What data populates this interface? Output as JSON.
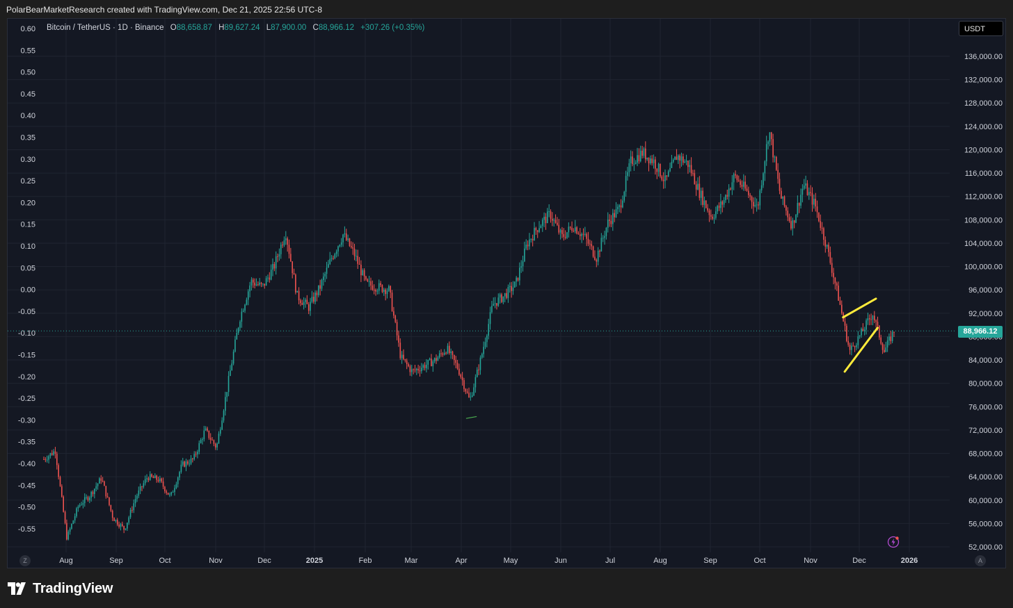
{
  "header": {
    "attribution": "PolarBearMarketResearch created with TradingView.com, Dec 21, 2025 22:56 UTC-8"
  },
  "legend": {
    "symbol": "Bitcoin / TetherUS · 1D · Binance",
    "open_label": "O",
    "open": "88,658.87",
    "high_label": "H",
    "high": "89,627.24",
    "low_label": "L",
    "low": "87,900.00",
    "close_label": "C",
    "close": "88,966.12",
    "change": "+307.26 (+0.35%)"
  },
  "currency_button": "USDT",
  "last_price_tag": "88,966.12",
  "zoom_label": "Z",
  "auto_label": "A",
  "brand": {
    "name": "TradingView",
    "logo_icon": "tradingview-logo-icon"
  },
  "colors": {
    "background": "#141823",
    "up": "#26a69a",
    "down": "#ef5350",
    "trendline": "#ffeb3b",
    "text": "#d1d4dc",
    "grid": "#1f2430"
  },
  "chart_data": {
    "type": "candlestick",
    "right_axis": {
      "ticks": [
        "136,000.00",
        "132,000.00",
        "128,000.00",
        "124,000.00",
        "120,000.00",
        "116,000.00",
        "112,000.00",
        "108,000.00",
        "104,000.00",
        "100,000.00",
        "96,000.00",
        "92,000.00",
        "88,000.00",
        "84,000.00",
        "80,000.00",
        "76,000.00",
        "72,000.00",
        "68,000.00",
        "64,000.00",
        "60,000.00",
        "56,000.00",
        "52,000.00"
      ],
      "range": [
        51000,
        138000
      ]
    },
    "left_axis": {
      "ticks": [
        "0.60",
        "0.55",
        "0.50",
        "0.45",
        "0.40",
        "0.35",
        "0.30",
        "0.25",
        "0.20",
        "0.15",
        "0.10",
        "0.05",
        "0.00",
        "-0.05",
        "-0.10",
        "-0.15",
        "-0.20",
        "-0.25",
        "-0.30",
        "-0.35",
        "-0.40",
        "-0.45",
        "-0.50",
        "-0.55"
      ]
    },
    "x_axis": {
      "labels": [
        "Aug",
        "Sep",
        "Oct",
        "Nov",
        "Dec",
        "2025",
        "Feb",
        "Mar",
        "Apr",
        "May",
        "Jun",
        "Jul",
        "Aug",
        "Sep",
        "Oct",
        "Nov",
        "Dec",
        "2026"
      ],
      "bold_labels": [
        "2025",
        "2026"
      ]
    },
    "last_price": 88966.12,
    "series": [
      {
        "date": "2024-07-22",
        "price": 67000
      },
      {
        "date": "2024-07-29",
        "price": 68500
      },
      {
        "date": "2024-08-05",
        "price": 53500
      },
      {
        "date": "2024-08-12",
        "price": 59000
      },
      {
        "date": "2024-08-19",
        "price": 60800
      },
      {
        "date": "2024-08-26",
        "price": 63800
      },
      {
        "date": "2024-09-02",
        "price": 57000
      },
      {
        "date": "2024-09-09",
        "price": 55000
      },
      {
        "date": "2024-09-16",
        "price": 60500
      },
      {
        "date": "2024-09-23",
        "price": 64000
      },
      {
        "date": "2024-09-30",
        "price": 63500
      },
      {
        "date": "2024-10-07",
        "price": 60500
      },
      {
        "date": "2024-10-14",
        "price": 66000
      },
      {
        "date": "2024-10-21",
        "price": 67000
      },
      {
        "date": "2024-10-28",
        "price": 72000
      },
      {
        "date": "2024-11-04",
        "price": 69000
      },
      {
        "date": "2024-11-11",
        "price": 80000
      },
      {
        "date": "2024-11-18",
        "price": 91000
      },
      {
        "date": "2024-11-25",
        "price": 97500
      },
      {
        "date": "2024-12-02",
        "price": 96500
      },
      {
        "date": "2024-12-09",
        "price": 100000
      },
      {
        "date": "2024-12-16",
        "price": 106000
      },
      {
        "date": "2024-12-23",
        "price": 95000
      },
      {
        "date": "2024-12-30",
        "price": 93000
      },
      {
        "date": "2025-01-06",
        "price": 96500
      },
      {
        "date": "2025-01-13",
        "price": 101500
      },
      {
        "date": "2025-01-20",
        "price": 105500
      },
      {
        "date": "2025-01-27",
        "price": 102000
      },
      {
        "date": "2025-02-03",
        "price": 97000
      },
      {
        "date": "2025-02-10",
        "price": 96500
      },
      {
        "date": "2025-02-17",
        "price": 96000
      },
      {
        "date": "2025-02-24",
        "price": 84500
      },
      {
        "date": "2025-03-03",
        "price": 82000
      },
      {
        "date": "2025-03-10",
        "price": 83000
      },
      {
        "date": "2025-03-17",
        "price": 84000
      },
      {
        "date": "2025-03-24",
        "price": 86000
      },
      {
        "date": "2025-03-31",
        "price": 82500
      },
      {
        "date": "2025-04-07",
        "price": 77000
      },
      {
        "date": "2025-04-14",
        "price": 84500
      },
      {
        "date": "2025-04-21",
        "price": 93500
      },
      {
        "date": "2025-04-28",
        "price": 95000
      },
      {
        "date": "2025-05-05",
        "price": 97000
      },
      {
        "date": "2025-05-12",
        "price": 104000
      },
      {
        "date": "2025-05-19",
        "price": 107000
      },
      {
        "date": "2025-05-26",
        "price": 109000
      },
      {
        "date": "2025-06-02",
        "price": 105000
      },
      {
        "date": "2025-06-09",
        "price": 107000
      },
      {
        "date": "2025-06-16",
        "price": 105000
      },
      {
        "date": "2025-06-23",
        "price": 101500
      },
      {
        "date": "2025-06-30",
        "price": 107500
      },
      {
        "date": "2025-07-07",
        "price": 110000
      },
      {
        "date": "2025-07-14",
        "price": 118000
      },
      {
        "date": "2025-07-21",
        "price": 119500
      },
      {
        "date": "2025-07-28",
        "price": 118000
      },
      {
        "date": "2025-08-04",
        "price": 114500
      },
      {
        "date": "2025-08-11",
        "price": 119000
      },
      {
        "date": "2025-08-18",
        "price": 117500
      },
      {
        "date": "2025-08-25",
        "price": 112500
      },
      {
        "date": "2025-09-01",
        "price": 108500
      },
      {
        "date": "2025-09-08",
        "price": 111000
      },
      {
        "date": "2025-09-15",
        "price": 115500
      },
      {
        "date": "2025-09-22",
        "price": 113000
      },
      {
        "date": "2025-09-29",
        "price": 110000
      },
      {
        "date": "2025-10-06",
        "price": 123500
      },
      {
        "date": "2025-10-13",
        "price": 112000
      },
      {
        "date": "2025-10-20",
        "price": 107000
      },
      {
        "date": "2025-10-27",
        "price": 114000
      },
      {
        "date": "2025-11-03",
        "price": 110500
      },
      {
        "date": "2025-11-10",
        "price": 103500
      },
      {
        "date": "2025-11-17",
        "price": 95000
      },
      {
        "date": "2025-11-24",
        "price": 85500
      },
      {
        "date": "2025-12-01",
        "price": 88500
      },
      {
        "date": "2025-12-08",
        "price": 92000
      },
      {
        "date": "2025-12-15",
        "price": 85500
      },
      {
        "date": "2025-12-21",
        "price": 88966
      }
    ],
    "annotations": [
      {
        "type": "trendline",
        "color": "#ffeb3b",
        "from": {
          "date": "2025-11-20",
          "price": 91300
        },
        "to": {
          "date": "2025-12-10",
          "price": 94500
        }
      },
      {
        "type": "trendline",
        "color": "#ffeb3b",
        "from": {
          "date": "2025-11-21",
          "price": 82000
        },
        "to": {
          "date": "2025-12-11",
          "price": 89500
        }
      },
      {
        "type": "trendline",
        "color": "#4caf50",
        "from": {
          "date": "2025-04-05",
          "price": 74000
        },
        "to": {
          "date": "2025-04-11",
          "price": 74300
        }
      }
    ]
  }
}
